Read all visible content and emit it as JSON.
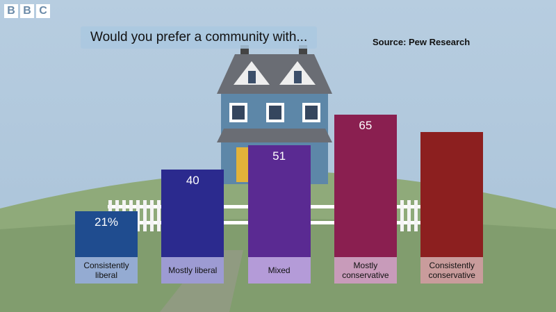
{
  "logo": [
    "B",
    "B",
    "C"
  ],
  "chart_data": {
    "type": "bar",
    "title": "Would you prefer a community with...",
    "source": "Source: Pew Research",
    "categories": [
      "Consistently liberal",
      "Mostly liberal",
      "Mixed",
      "Mostly conservative",
      "Consistently conservative"
    ],
    "values": [
      21,
      40,
      51,
      65,
      57
    ],
    "value_labels": [
      "21%",
      "40",
      "51",
      "65",
      null
    ],
    "colors": [
      "#1f4c8f",
      "#2b2a8e",
      "#5a2a92",
      "#8a1f50",
      "#8c1f1f"
    ],
    "label_colors": [
      "#94abd2",
      "#9d9bd3",
      "#b49bd8",
      "#c89bba",
      "#c99c9c"
    ]
  }
}
